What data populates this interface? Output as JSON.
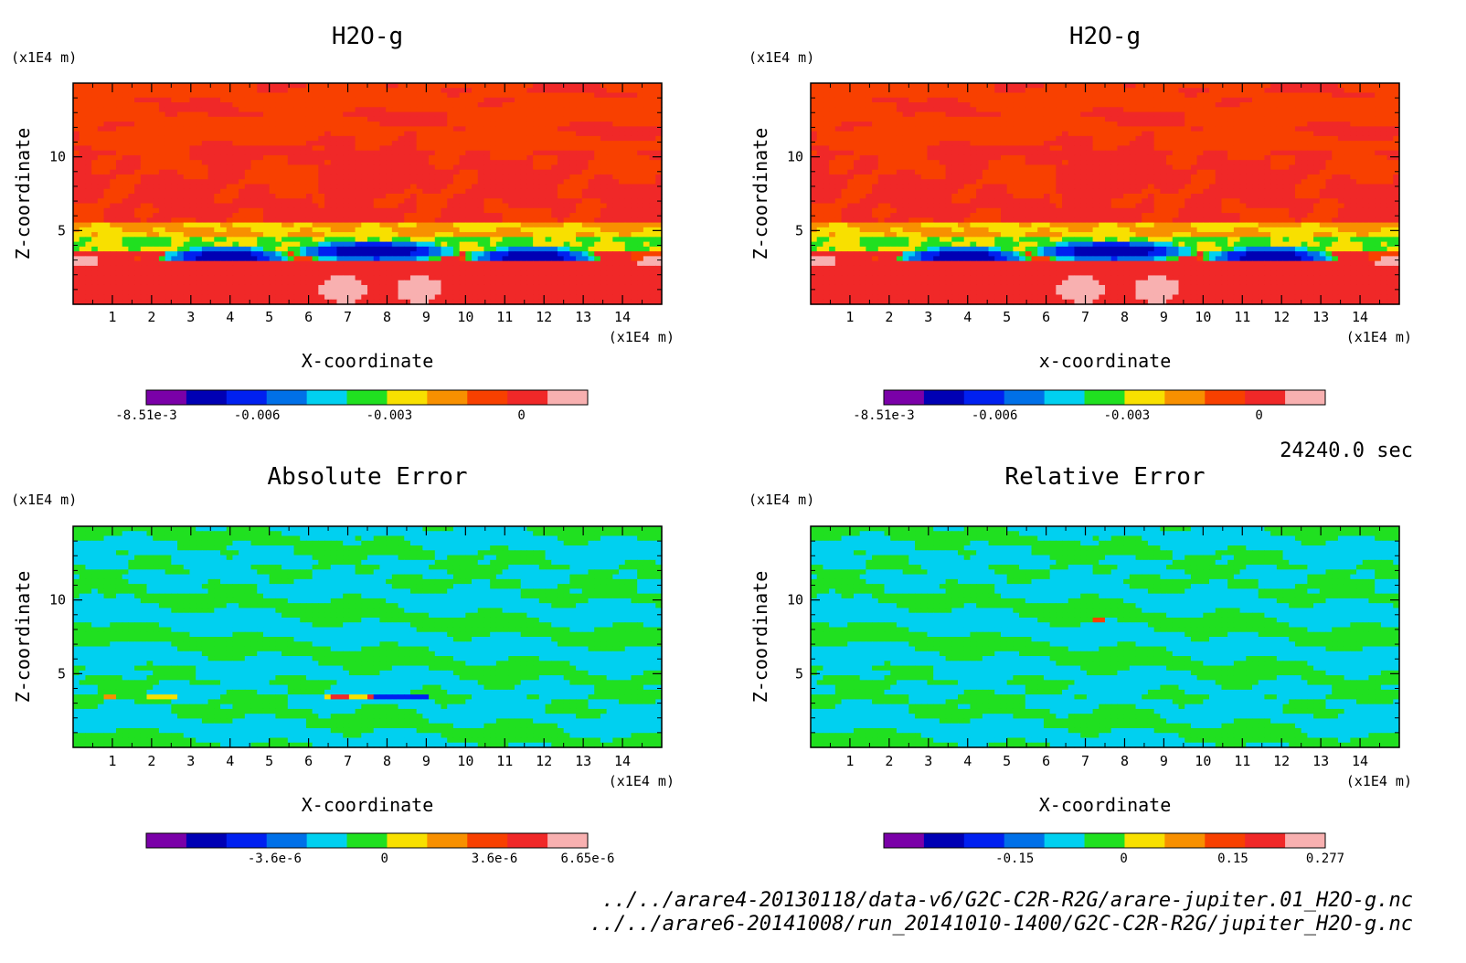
{
  "panels": [
    {
      "id": "tl",
      "title": "H2O-g",
      "unit_label": "(x1E4 m)",
      "xlabel": "X-coordinate",
      "ylabel": "Z-coordinate",
      "field": "h2o",
      "colorbar": {
        "colors": [
          "#7a00a8",
          "#0000b4",
          "#0020f0",
          "#0070e8",
          "#00d0f0",
          "#20e020",
          "#f8e000",
          "#f89000",
          "#f84000",
          "#f02828",
          "#f8b0b0"
        ],
        "tick_labels": [
          "-8.51e-3",
          "-0.006",
          "-0.003",
          "0"
        ],
        "tick_values": [
          -0.00851,
          -0.006,
          -0.003,
          0
        ],
        "range": [
          -0.00851,
          0.0015
        ]
      }
    },
    {
      "id": "tr",
      "title": "H2O-g",
      "unit_label": "(x1E4 m)",
      "xlabel": "x-coordinate",
      "ylabel": "Z-coordinate",
      "field": "h2o",
      "colorbar": {
        "colors": [
          "#7a00a8",
          "#0000b4",
          "#0020f0",
          "#0070e8",
          "#00d0f0",
          "#20e020",
          "#f8e000",
          "#f89000",
          "#f84000",
          "#f02828",
          "#f8b0b0"
        ],
        "tick_labels": [
          "-8.51e-3",
          "-0.006",
          "-0.003",
          "0"
        ],
        "tick_values": [
          -0.00851,
          -0.006,
          -0.003,
          0
        ],
        "range": [
          -0.00851,
          0.0015
        ]
      }
    },
    {
      "id": "bl",
      "title": "Absolute Error",
      "unit_label": "(x1E4 m)",
      "xlabel": "X-coordinate",
      "ylabel": "Z-coordinate",
      "field": "abs",
      "colorbar": {
        "colors": [
          "#7a00a8",
          "#0000b4",
          "#0020f0",
          "#0070e8",
          "#00d0f0",
          "#20e020",
          "#f8e000",
          "#f89000",
          "#f84000",
          "#f02828",
          "#f8b0b0"
        ],
        "tick_labels": [
          "-3.6e-6",
          "0",
          "3.6e-6",
          "6.65e-6"
        ],
        "tick_values": [
          -3.6e-06,
          0,
          3.6e-06,
          6.65e-06
        ],
        "range": [
          -7.8e-06,
          6.65e-06
        ]
      }
    },
    {
      "id": "br",
      "title": "Relative Error",
      "unit_label": "(x1E4 m)",
      "xlabel": "X-coordinate",
      "ylabel": "Z-coordinate",
      "field": "rel",
      "colorbar": {
        "colors": [
          "#7a00a8",
          "#0000b4",
          "#0020f0",
          "#0070e8",
          "#00d0f0",
          "#20e020",
          "#f8e000",
          "#f89000",
          "#f84000",
          "#f02828",
          "#f8b0b0"
        ],
        "tick_labels": [
          "-0.15",
          "0",
          "0.15",
          "0.277"
        ],
        "tick_values": [
          -0.15,
          0,
          0.15,
          0.277
        ],
        "range": [
          -0.33,
          0.277
        ]
      }
    }
  ],
  "time_label": "24240.0 sec",
  "file_paths": [
    "../../arare4-20130118/data-v6/G2C-C2R-R2G/arare-jupiter.01_H2O-g.nc",
    "../../arare6-20141008/run_20141010-1400/G2C-C2R-R2G/jupiter_H2O-g.nc"
  ],
  "chart_data": [
    {
      "type": "heatmap",
      "title": "H2O-g",
      "xlabel": "X-coordinate",
      "ylabel": "Z-coordinate",
      "x_unit": "(x1E4 m)",
      "y_unit": "(x1E4 m)",
      "xlim": [
        0,
        15
      ],
      "ylim": [
        0,
        15
      ],
      "x_ticks": [
        1,
        2,
        3,
        4,
        5,
        6,
        7,
        8,
        9,
        10,
        11,
        12,
        13,
        14
      ],
      "y_ticks": [
        5,
        10
      ],
      "colorbar_ticks": [
        "-8.51e-3",
        "-0.006",
        "-0.003",
        "0"
      ],
      "colorbar_min": -0.00851
    },
    {
      "type": "heatmap",
      "title": "H2O-g",
      "xlabel": "x-coordinate",
      "ylabel": "Z-coordinate",
      "x_unit": "(x1E4 m)",
      "y_unit": "(x1E4 m)",
      "xlim": [
        0,
        15
      ],
      "ylim": [
        0,
        15
      ],
      "x_ticks": [
        1,
        2,
        3,
        4,
        5,
        6,
        7,
        8,
        9,
        10,
        11,
        12,
        13,
        14
      ],
      "y_ticks": [
        5,
        10
      ],
      "colorbar_ticks": [
        "-8.51e-3",
        "-0.006",
        "-0.003",
        "0"
      ],
      "colorbar_min": -0.00851
    },
    {
      "type": "heatmap",
      "title": "Absolute Error",
      "xlabel": "X-coordinate",
      "ylabel": "Z-coordinate",
      "x_unit": "(x1E4 m)",
      "y_unit": "(x1E4 m)",
      "xlim": [
        0,
        15
      ],
      "ylim": [
        0,
        15
      ],
      "x_ticks": [
        1,
        2,
        3,
        4,
        5,
        6,
        7,
        8,
        9,
        10,
        11,
        12,
        13,
        14
      ],
      "y_ticks": [
        5,
        10
      ],
      "colorbar_ticks": [
        "-3.6e-6",
        "0",
        "3.6e-6",
        "6.65e-6"
      ],
      "colorbar_max": 6.65e-06
    },
    {
      "type": "heatmap",
      "title": "Relative Error",
      "xlabel": "X-coordinate",
      "ylabel": "Z-coordinate",
      "x_unit": "(x1E4 m)",
      "y_unit": "(x1E4 m)",
      "xlim": [
        0,
        15
      ],
      "ylim": [
        0,
        15
      ],
      "x_ticks": [
        1,
        2,
        3,
        4,
        5,
        6,
        7,
        8,
        9,
        10,
        11,
        12,
        13,
        14
      ],
      "y_ticks": [
        5,
        10
      ],
      "colorbar_ticks": [
        "-0.15",
        "0",
        "0.15",
        "0.277"
      ],
      "colorbar_max": 0.277
    }
  ]
}
